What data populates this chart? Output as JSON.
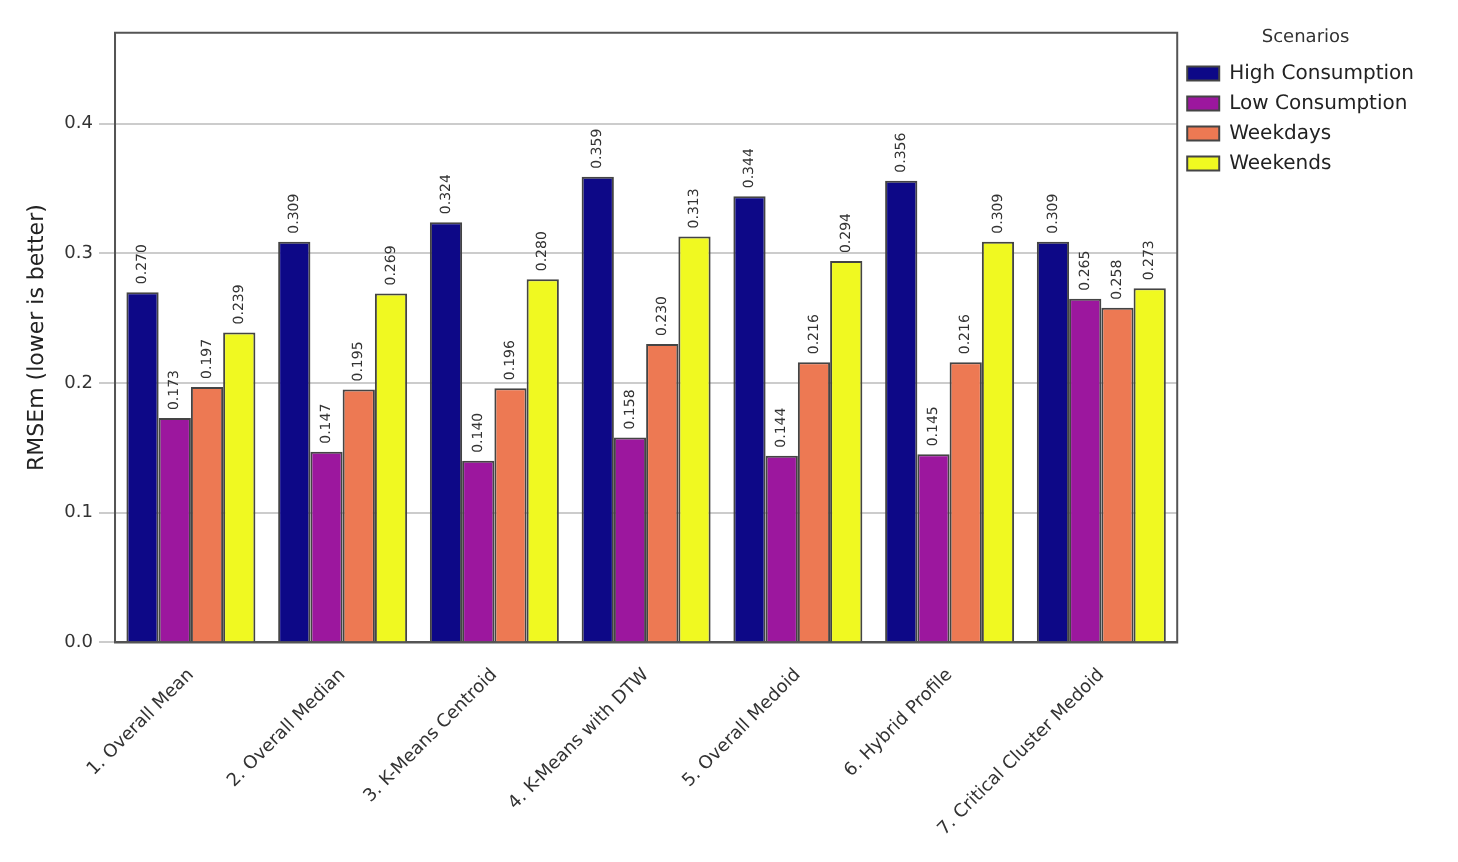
{
  "chart_data": {
    "type": "bar",
    "ylabel": "RMSEm (lower is better)",
    "legend_title": "Scenarios",
    "categories": [
      "1. Overall Mean",
      "2. Overall Median",
      "3. K-Means Centroid",
      "4. K-Means with DTW",
      "5. Overall Medoid",
      "6. Hybrid Profile",
      "7. Critical Cluster Medoid"
    ],
    "series": [
      {
        "name": "High Consumption",
        "color": "#0d0887",
        "values": [
          0.27,
          0.309,
          0.324,
          0.359,
          0.344,
          0.356,
          0.309
        ],
        "value_labels": [
          "0.270",
          "0.309",
          "0.324",
          "0.359",
          "0.344",
          "0.356",
          "0.309"
        ]
      },
      {
        "name": "Low Consumption",
        "color": "#9c179e",
        "values": [
          0.173,
          0.147,
          0.14,
          0.158,
          0.144,
          0.145,
          0.265
        ],
        "value_labels": [
          "0.173",
          "0.147",
          "0.140",
          "0.158",
          "0.144",
          "0.145",
          "0.265"
        ]
      },
      {
        "name": "Weekdays",
        "color": "#ed7953",
        "values": [
          0.197,
          0.195,
          0.196,
          0.23,
          0.216,
          0.216,
          0.258
        ],
        "value_labels": [
          "0.197",
          "0.195",
          "0.196",
          "0.230",
          "0.216",
          "0.216",
          "0.258"
        ]
      },
      {
        "name": "Weekends",
        "color": "#f0f921",
        "values": [
          0.239,
          0.269,
          0.28,
          0.313,
          0.294,
          0.309,
          0.273
        ],
        "value_labels": [
          "0.239",
          "0.269",
          "0.280",
          "0.313",
          "0.294",
          "0.309",
          "0.273"
        ]
      }
    ],
    "ylim": [
      0,
      0.47
    ],
    "yticks": [
      {
        "value": 0,
        "label": "0.0"
      },
      {
        "value": 0.1,
        "label": "0.1"
      },
      {
        "value": 0.2,
        "label": "0.2"
      },
      {
        "value": 0.3,
        "label": "0.3"
      },
      {
        "value": 0.4,
        "label": "0.4"
      }
    ],
    "grid": "y",
    "legend": "top right"
  }
}
